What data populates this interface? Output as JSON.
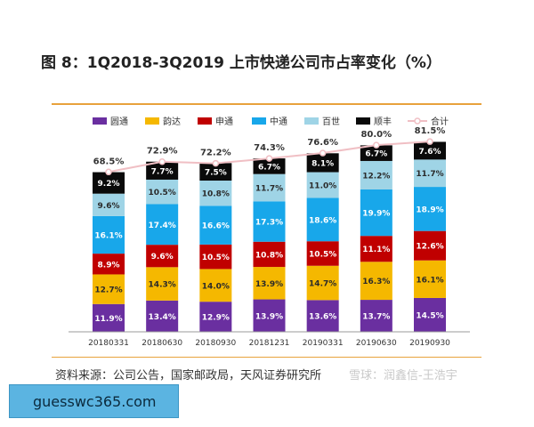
{
  "title": "图 8：1Q2018-3Q2019 上市快递公司市占率变化（%）",
  "source": "资料来源：公司公告，国家邮政局，天风证券研究所",
  "watermark": "雪球：润鑫信-王浩宇",
  "banner": "guesswc365.com",
  "chart_data": {
    "type": "bar",
    "stacked": true,
    "categories": [
      "20180331",
      "20180630",
      "20180930",
      "20181231",
      "20190331",
      "20190630",
      "20190930"
    ],
    "series": [
      {
        "name": "圆通",
        "color": "#6a2fa0",
        "values": [
          11.9,
          13.4,
          12.9,
          13.9,
          13.6,
          13.7,
          14.5
        ]
      },
      {
        "name": "韵达",
        "color": "#f5b800",
        "values": [
          12.7,
          14.3,
          14.0,
          13.9,
          14.7,
          16.3,
          16.1
        ]
      },
      {
        "name": "申通",
        "color": "#c00000",
        "values": [
          8.9,
          9.6,
          10.5,
          10.8,
          10.5,
          11.1,
          12.6
        ]
      },
      {
        "name": "中通",
        "color": "#18a7ea",
        "values": [
          16.1,
          17.4,
          16.6,
          17.3,
          18.6,
          19.9,
          18.9
        ]
      },
      {
        "name": "百世",
        "color": "#9fd4e6",
        "values": [
          9.6,
          10.5,
          10.8,
          11.7,
          11.0,
          12.2,
          11.7
        ]
      },
      {
        "name": "顺丰",
        "color": "#0a0a0a",
        "values": [
          9.2,
          7.7,
          7.5,
          6.7,
          8.1,
          6.7,
          7.6
        ]
      }
    ],
    "total": {
      "name": "合计",
      "color": "#f0bfc4",
      "values": [
        68.5,
        72.9,
        72.2,
        74.3,
        76.6,
        80.0,
        81.5
      ]
    },
    "ylim": [
      0,
      85
    ],
    "grid": false,
    "legend_position": "top"
  }
}
